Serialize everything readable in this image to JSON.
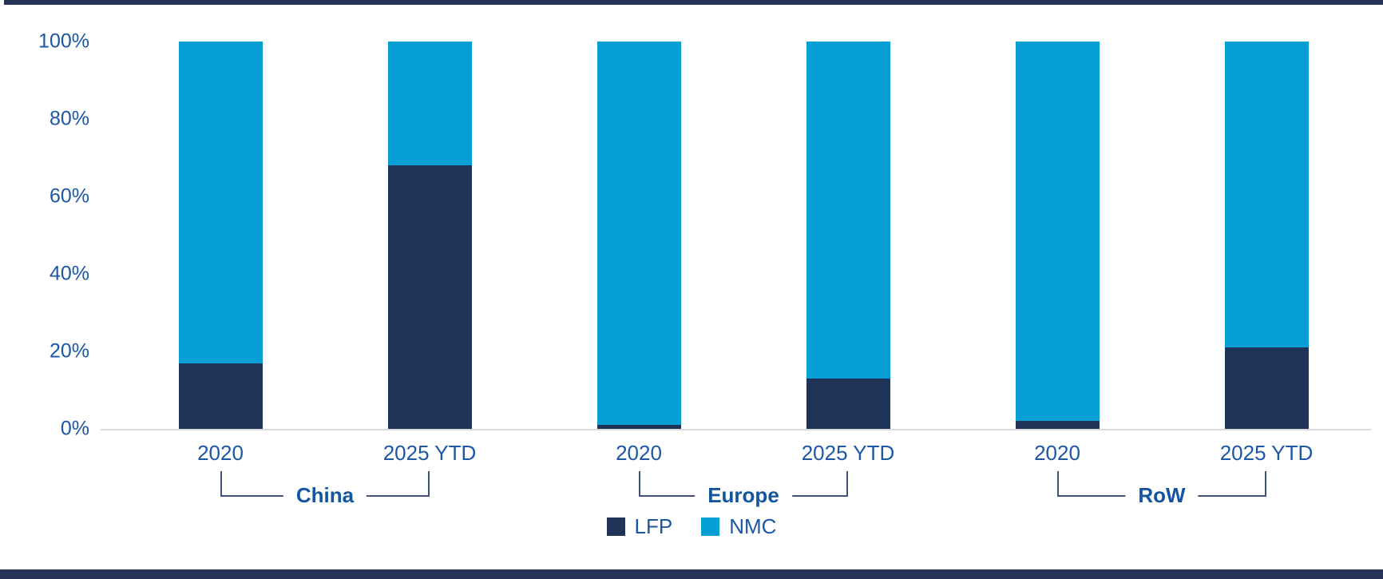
{
  "chart_data": {
    "type": "bar",
    "stacked": true,
    "units": "%",
    "y_axis": {
      "ticks": [
        "0%",
        "20%",
        "40%",
        "60%",
        "80%",
        "100%"
      ],
      "min": 0,
      "max": 100,
      "gridlines": false
    },
    "series_names": [
      "LFP",
      "NMC"
    ],
    "groups": [
      {
        "label": "China",
        "bars": [
          {
            "label": "2020",
            "LFP": 17,
            "NMC": 83
          },
          {
            "label": "2025 YTD",
            "LFP": 68,
            "NMC": 32
          }
        ]
      },
      {
        "label": "Europe",
        "bars": [
          {
            "label": "2020",
            "LFP": 1,
            "NMC": 99
          },
          {
            "label": "2025 YTD",
            "LFP": 13,
            "NMC": 87
          }
        ]
      },
      {
        "label": "RoW",
        "bars": [
          {
            "label": "2020",
            "LFP": 2,
            "NMC": 98
          },
          {
            "label": "2025 YTD",
            "LFP": 21,
            "NMC": 79
          }
        ]
      }
    ],
    "legend": [
      {
        "label": "LFP",
        "color": "#1f3257"
      },
      {
        "label": "NMC",
        "color": "#059fd6"
      }
    ],
    "legend_position": "bottom",
    "colors": {
      "lfp": "#1f3257",
      "nmc": "#059fd6",
      "axis_line": "#d9d9d9",
      "tick_text": "#1c57a5",
      "group_text": "#1455a0",
      "bracket_line": "#3f5178",
      "border": "#273457"
    }
  }
}
